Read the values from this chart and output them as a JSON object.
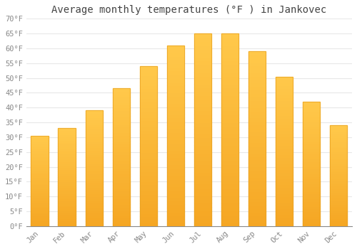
{
  "title": "Average monthly temperatures (°F ) in Jankovec",
  "months": [
    "Jan",
    "Feb",
    "Mar",
    "Apr",
    "May",
    "Jun",
    "Jul",
    "Aug",
    "Sep",
    "Oct",
    "Nov",
    "Dec"
  ],
  "values": [
    30.5,
    33.0,
    39.0,
    46.5,
    54.0,
    61.0,
    65.0,
    65.0,
    59.0,
    50.5,
    42.0,
    34.0
  ],
  "ylim": [
    0,
    70
  ],
  "yticks": [
    0,
    5,
    10,
    15,
    20,
    25,
    30,
    35,
    40,
    45,
    50,
    55,
    60,
    65,
    70
  ],
  "bar_color_bottom": "#F5A623",
  "bar_color_top": "#FFC84A",
  "bar_edge_color": "#E8A020",
  "background_color": "#ffffff",
  "grid_color": "#e8e8e8",
  "title_fontsize": 10,
  "tick_fontsize": 7.5,
  "tick_color": "#888888",
  "title_color": "#444444"
}
